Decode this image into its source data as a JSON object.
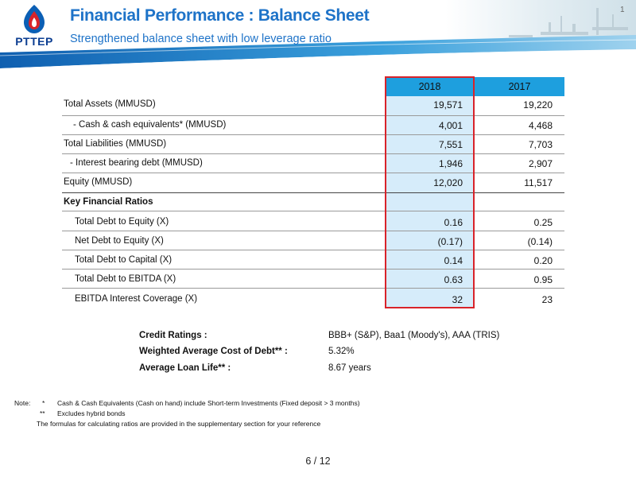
{
  "header": {
    "logo_text": "PTTEP",
    "title": "Financial Performance : Balance Sheet",
    "subtitle": "Strengthened balance sheet with low leverage ratio",
    "corner_mark": "1"
  },
  "table": {
    "columns": [
      "2018",
      "2017"
    ],
    "rows": [
      {
        "label": "Total Assets (MMUSD)",
        "v2018": "19,571",
        "v2017": "19,220"
      },
      {
        "label": "- Cash & cash equivalents* (MMUSD)",
        "v2018": "4,001",
        "v2017": "4,468"
      },
      {
        "label": "Total Liabilities (MMUSD)",
        "v2018": "7,551",
        "v2017": "7,703"
      },
      {
        "label": "-  Interest bearing debt (MMUSD)",
        "v2018": "1,946",
        "v2017": "2,907"
      },
      {
        "label": "Equity (MMUSD)",
        "v2018": "12,020",
        "v2017": "11,517"
      }
    ],
    "ratios_heading": "Key Financial Ratios",
    "ratios": [
      {
        "label": "Total Debt to Equity (X)",
        "v2018": "0.16",
        "v2017": "0.25"
      },
      {
        "label": "Net Debt to Equity (X)",
        "v2018": "(0.17)",
        "v2017": "(0.14)"
      },
      {
        "label": "Total Debt to Capital (X)",
        "v2018": "0.14",
        "v2017": "0.20"
      },
      {
        "label": "Total Debt to EBITDA (X)",
        "v2018": "0.63",
        "v2017": "0.95"
      },
      {
        "label": "EBITDA Interest Coverage (X)",
        "v2018": "32",
        "v2017": "23"
      }
    ]
  },
  "credit": {
    "ratings_label": "Credit Ratings :",
    "ratings_value": "BBB+ (S&P), Baa1 (Moody's),  AAA (TRIS)",
    "wacd_label": "Weighted Average Cost of Debt** :",
    "wacd_value": "5.32%",
    "loan_life_label": "Average Loan Life** :",
    "loan_life_value": "8.67 years"
  },
  "notes": {
    "prefix": "Note:",
    "star1": "*",
    "note1": "Cash & Cash Equivalents (Cash on hand) include Short-term Investments (Fixed deposit > 3 months)",
    "star2": "**",
    "note2": "Excludes hybrid bonds",
    "note3": "The formulas for calculating ratios are provided in the supplementary section for your reference"
  },
  "footer": {
    "page": "6 / 12"
  },
  "colors": {
    "brand_blue": "#1e73c8",
    "header_bar": "#1e9fde",
    "highlight_fill": "#d6ecfa",
    "highlight_border": "#d8232a"
  }
}
